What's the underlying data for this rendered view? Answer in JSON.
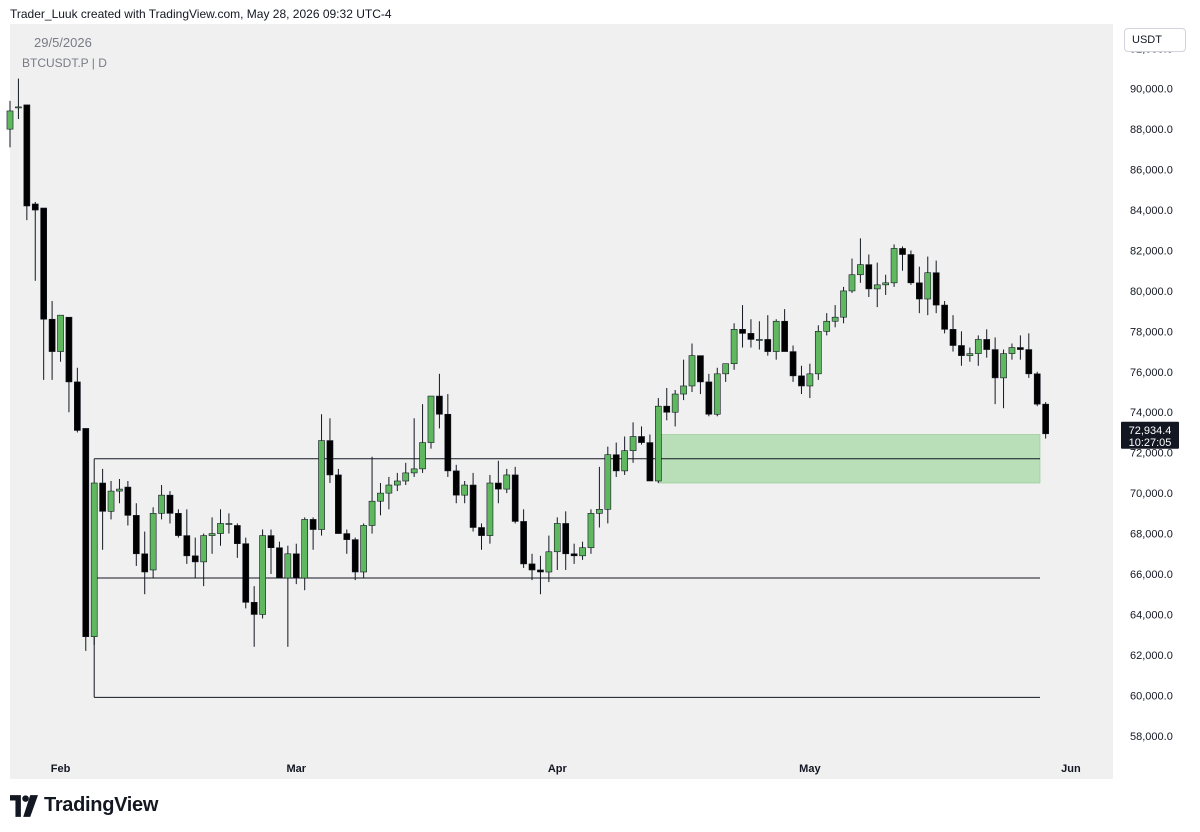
{
  "header": {
    "attribution": "Trader_Luuk created with TradingView.com, May 28, 2026 09:32 UTC-4"
  },
  "legend": {
    "date": "29/5/2026",
    "symbol": "BTCUSDT.P | D"
  },
  "currency_button": "USDT",
  "price_label": {
    "price": "72,934.4",
    "countdown": "10:27:05"
  },
  "footer": {
    "brand": "TradingView",
    "icon": "tradingview-logo-icon"
  },
  "colors": {
    "up": "#5fb85f",
    "down": "#000000",
    "zone": "#b8dfb7",
    "plot_bg": "#f0f0f0"
  },
  "chart_data": {
    "type": "candlestick",
    "timeframe": "D",
    "y_axis": {
      "ticks": [
        "58,000.0",
        "60,000.0",
        "62,000.0",
        "64,000.0",
        "66,000.0",
        "68,000.0",
        "70,000.0",
        "72,000.0",
        "74,000.0",
        "76,000.0",
        "78,000.0",
        "80,000.0",
        "82,000.0",
        "84,000.0",
        "86,000.0",
        "88,000.0",
        "90,000.0",
        "92,000.0"
      ],
      "range": [
        57000,
        93200
      ]
    },
    "x_axis": {
      "ticks": [
        {
          "label": "Feb",
          "date": "2026-02-01"
        },
        {
          "label": "Mar",
          "date": "2026-03-01"
        },
        {
          "label": "Apr",
          "date": "2026-04-01"
        },
        {
          "label": "May",
          "date": "2026-05-01"
        },
        {
          "label": "Jun",
          "date": "2026-06-01"
        }
      ],
      "range": [
        "2026-01-26",
        "2026-06-06"
      ]
    },
    "candles": [
      {
        "d": "2026-01-26",
        "o": 88000,
        "h": 89400,
        "l": 87100,
        "c": 88900
      },
      {
        "d": "2026-01-27",
        "o": 89100,
        "h": 90500,
        "l": 88500,
        "c": 89100
      },
      {
        "d": "2026-01-28",
        "o": 89200,
        "h": 89200,
        "l": 83500,
        "c": 84200
      },
      {
        "d": "2026-01-29",
        "o": 84300,
        "h": 84400,
        "l": 80500,
        "c": 84000
      },
      {
        "d": "2026-01-30",
        "o": 84100,
        "h": 84100,
        "l": 75600,
        "c": 78600
      },
      {
        "d": "2026-01-31",
        "o": 78600,
        "h": 79500,
        "l": 75600,
        "c": 77000
      },
      {
        "d": "2026-02-01",
        "o": 77000,
        "h": 78800,
        "l": 76500,
        "c": 78800
      },
      {
        "d": "2026-02-02",
        "o": 78700,
        "h": 78700,
        "l": 74000,
        "c": 75500
      },
      {
        "d": "2026-02-03",
        "o": 75500,
        "h": 76200,
        "l": 73000,
        "c": 73100
      },
      {
        "d": "2026-02-04",
        "o": 73200,
        "h": 73200,
        "l": 62200,
        "c": 62900
      },
      {
        "d": "2026-02-05",
        "o": 62900,
        "h": 70500,
        "l": 62500,
        "c": 70500
      },
      {
        "d": "2026-02-06",
        "o": 70500,
        "h": 71200,
        "l": 67200,
        "c": 69100
      },
      {
        "d": "2026-02-07",
        "o": 69100,
        "h": 70600,
        "l": 68700,
        "c": 70100
      },
      {
        "d": "2026-02-08",
        "o": 70100,
        "h": 70700,
        "l": 69500,
        "c": 70200
      },
      {
        "d": "2026-02-09",
        "o": 70300,
        "h": 70600,
        "l": 68400,
        "c": 68900
      },
      {
        "d": "2026-02-10",
        "o": 68900,
        "h": 69500,
        "l": 66400,
        "c": 67000
      },
      {
        "d": "2026-02-11",
        "o": 67000,
        "h": 68100,
        "l": 65000,
        "c": 66100
      },
      {
        "d": "2026-02-12",
        "o": 66200,
        "h": 69300,
        "l": 65800,
        "c": 69000
      },
      {
        "d": "2026-02-13",
        "o": 69000,
        "h": 70400,
        "l": 68700,
        "c": 69900
      },
      {
        "d": "2026-02-14",
        "o": 69900,
        "h": 70100,
        "l": 68500,
        "c": 69000
      },
      {
        "d": "2026-02-15",
        "o": 69000,
        "h": 69200,
        "l": 67800,
        "c": 67900
      },
      {
        "d": "2026-02-16",
        "o": 67900,
        "h": 69200,
        "l": 66500,
        "c": 66900
      },
      {
        "d": "2026-02-17",
        "o": 66900,
        "h": 67800,
        "l": 65800,
        "c": 66600
      },
      {
        "d": "2026-02-18",
        "o": 66600,
        "h": 68000,
        "l": 65400,
        "c": 67900
      },
      {
        "d": "2026-02-19",
        "o": 67900,
        "h": 68800,
        "l": 67000,
        "c": 68000
      },
      {
        "d": "2026-02-20",
        "o": 68000,
        "h": 69200,
        "l": 67400,
        "c": 68500
      },
      {
        "d": "2026-02-21",
        "o": 68500,
        "h": 69000,
        "l": 68000,
        "c": 68500
      },
      {
        "d": "2026-02-22",
        "o": 68400,
        "h": 68500,
        "l": 66800,
        "c": 67500
      },
      {
        "d": "2026-02-23",
        "o": 67500,
        "h": 67800,
        "l": 64300,
        "c": 64600
      },
      {
        "d": "2026-02-24",
        "o": 64600,
        "h": 65400,
        "l": 62400,
        "c": 64000
      },
      {
        "d": "2026-02-25",
        "o": 64000,
        "h": 68200,
        "l": 63800,
        "c": 67900
      },
      {
        "d": "2026-02-26",
        "o": 67900,
        "h": 68200,
        "l": 66000,
        "c": 67300
      },
      {
        "d": "2026-02-27",
        "o": 67300,
        "h": 67600,
        "l": 65800,
        "c": 65800
      },
      {
        "d": "2026-02-28",
        "o": 65800,
        "h": 67400,
        "l": 62400,
        "c": 67000
      },
      {
        "d": "2026-03-01",
        "o": 67000,
        "h": 67500,
        "l": 65500,
        "c": 65800
      },
      {
        "d": "2026-03-02",
        "o": 65800,
        "h": 68800,
        "l": 65200,
        "c": 68700
      },
      {
        "d": "2026-03-03",
        "o": 68700,
        "h": 68800,
        "l": 67200,
        "c": 68200
      },
      {
        "d": "2026-03-04",
        "o": 68200,
        "h": 73900,
        "l": 67900,
        "c": 72600
      },
      {
        "d": "2026-03-05",
        "o": 72600,
        "h": 73700,
        "l": 70500,
        "c": 70900
      },
      {
        "d": "2026-03-06",
        "o": 70900,
        "h": 71200,
        "l": 68000,
        "c": 68000
      },
      {
        "d": "2026-03-07",
        "o": 68000,
        "h": 68200,
        "l": 67000,
        "c": 67700
      },
      {
        "d": "2026-03-08",
        "o": 67700,
        "h": 67800,
        "l": 65700,
        "c": 66100
      },
      {
        "d": "2026-03-09",
        "o": 66100,
        "h": 68500,
        "l": 65800,
        "c": 68400
      },
      {
        "d": "2026-03-10",
        "o": 68400,
        "h": 71800,
        "l": 68000,
        "c": 69600
      },
      {
        "d": "2026-03-11",
        "o": 69600,
        "h": 70500,
        "l": 68900,
        "c": 70000
      },
      {
        "d": "2026-03-12",
        "o": 70000,
        "h": 70800,
        "l": 69200,
        "c": 70400
      },
      {
        "d": "2026-03-13",
        "o": 70400,
        "h": 71000,
        "l": 70100,
        "c": 70600
      },
      {
        "d": "2026-03-14",
        "o": 70600,
        "h": 71500,
        "l": 70400,
        "c": 71000
      },
      {
        "d": "2026-03-15",
        "o": 71000,
        "h": 73700,
        "l": 70800,
        "c": 71200
      },
      {
        "d": "2026-03-16",
        "o": 71200,
        "h": 74400,
        "l": 71000,
        "c": 72500
      },
      {
        "d": "2026-03-17",
        "o": 72500,
        "h": 74800,
        "l": 72200,
        "c": 74800
      },
      {
        "d": "2026-03-18",
        "o": 74800,
        "h": 75900,
        "l": 73200,
        "c": 73900
      },
      {
        "d": "2026-03-19",
        "o": 73900,
        "h": 74900,
        "l": 70800,
        "c": 71100
      },
      {
        "d": "2026-03-20",
        "o": 71100,
        "h": 71400,
        "l": 69500,
        "c": 69900
      },
      {
        "d": "2026-03-21",
        "o": 69900,
        "h": 70600,
        "l": 69500,
        "c": 70400
      },
      {
        "d": "2026-03-22",
        "o": 70400,
        "h": 71000,
        "l": 68100,
        "c": 68300
      },
      {
        "d": "2026-03-23",
        "o": 68300,
        "h": 68500,
        "l": 67200,
        "c": 67900
      },
      {
        "d": "2026-03-24",
        "o": 67900,
        "h": 70900,
        "l": 67500,
        "c": 70500
      },
      {
        "d": "2026-03-25",
        "o": 70500,
        "h": 71600,
        "l": 69500,
        "c": 70200
      },
      {
        "d": "2026-03-26",
        "o": 70200,
        "h": 71200,
        "l": 70000,
        "c": 70900
      },
      {
        "d": "2026-03-27",
        "o": 70900,
        "h": 71300,
        "l": 68500,
        "c": 68600
      },
      {
        "d": "2026-03-28",
        "o": 68600,
        "h": 69200,
        "l": 66300,
        "c": 66500
      },
      {
        "d": "2026-03-29",
        "o": 66500,
        "h": 67000,
        "l": 65700,
        "c": 66200
      },
      {
        "d": "2026-03-30",
        "o": 66200,
        "h": 66900,
        "l": 65000,
        "c": 66100
      },
      {
        "d": "2026-03-31",
        "o": 66100,
        "h": 67900,
        "l": 65600,
        "c": 67100
      },
      {
        "d": "2026-04-01",
        "o": 67100,
        "h": 68800,
        "l": 66200,
        "c": 68500
      },
      {
        "d": "2026-04-02",
        "o": 68500,
        "h": 69100,
        "l": 66200,
        "c": 67000
      },
      {
        "d": "2026-04-03",
        "o": 67000,
        "h": 67500,
        "l": 66500,
        "c": 66900
      },
      {
        "d": "2026-04-04",
        "o": 66900,
        "h": 67600,
        "l": 66700,
        "c": 67300
      },
      {
        "d": "2026-04-05",
        "o": 67300,
        "h": 69200,
        "l": 67000,
        "c": 69000
      },
      {
        "d": "2026-04-06",
        "o": 69000,
        "h": 71300,
        "l": 68300,
        "c": 69200
      },
      {
        "d": "2026-04-07",
        "o": 69200,
        "h": 72300,
        "l": 68500,
        "c": 71900
      },
      {
        "d": "2026-04-08",
        "o": 71900,
        "h": 72500,
        "l": 70800,
        "c": 71100
      },
      {
        "d": "2026-04-09",
        "o": 71100,
        "h": 72800,
        "l": 70900,
        "c": 72100
      },
      {
        "d": "2026-04-10",
        "o": 72100,
        "h": 73500,
        "l": 71500,
        "c": 72800
      },
      {
        "d": "2026-04-11",
        "o": 72800,
        "h": 73300,
        "l": 72400,
        "c": 72500
      },
      {
        "d": "2026-04-12",
        "o": 72500,
        "h": 72900,
        "l": 70600,
        "c": 70600
      },
      {
        "d": "2026-04-13",
        "o": 70600,
        "h": 74700,
        "l": 70500,
        "c": 74300
      },
      {
        "d": "2026-04-14",
        "o": 74300,
        "h": 75200,
        "l": 73600,
        "c": 74000
      },
      {
        "d": "2026-04-15",
        "o": 74000,
        "h": 75100,
        "l": 73300,
        "c": 74900
      },
      {
        "d": "2026-04-16",
        "o": 74900,
        "h": 76600,
        "l": 74600,
        "c": 75300
      },
      {
        "d": "2026-04-17",
        "o": 75300,
        "h": 77400,
        "l": 75000,
        "c": 76800
      },
      {
        "d": "2026-04-18",
        "o": 76800,
        "h": 76800,
        "l": 74900,
        "c": 75500
      },
      {
        "d": "2026-04-19",
        "o": 75500,
        "h": 75900,
        "l": 73800,
        "c": 73900
      },
      {
        "d": "2026-04-20",
        "o": 73900,
        "h": 76200,
        "l": 73800,
        "c": 75900
      },
      {
        "d": "2026-04-21",
        "o": 75900,
        "h": 76300,
        "l": 75500,
        "c": 76400
      },
      {
        "d": "2026-04-22",
        "o": 76400,
        "h": 78400,
        "l": 76100,
        "c": 78100
      },
      {
        "d": "2026-04-23",
        "o": 78100,
        "h": 79300,
        "l": 77200,
        "c": 77900
      },
      {
        "d": "2026-04-24",
        "o": 77900,
        "h": 78600,
        "l": 77200,
        "c": 77600
      },
      {
        "d": "2026-04-25",
        "o": 77600,
        "h": 78500,
        "l": 77100,
        "c": 77600
      },
      {
        "d": "2026-04-26",
        "o": 77600,
        "h": 78800,
        "l": 76800,
        "c": 77000
      },
      {
        "d": "2026-04-27",
        "o": 77000,
        "h": 78600,
        "l": 76600,
        "c": 78500
      },
      {
        "d": "2026-04-28",
        "o": 78500,
        "h": 79100,
        "l": 77300,
        "c": 77000
      },
      {
        "d": "2026-04-29",
        "o": 77000,
        "h": 77300,
        "l": 75500,
        "c": 75800
      },
      {
        "d": "2026-04-30",
        "o": 75800,
        "h": 76300,
        "l": 74900,
        "c": 75300
      },
      {
        "d": "2026-05-01",
        "o": 75300,
        "h": 76400,
        "l": 74700,
        "c": 75900
      },
      {
        "d": "2026-05-02",
        "o": 75900,
        "h": 78300,
        "l": 75600,
        "c": 78000
      },
      {
        "d": "2026-05-03",
        "o": 78000,
        "h": 78900,
        "l": 77800,
        "c": 78500
      },
      {
        "d": "2026-05-04",
        "o": 78500,
        "h": 79300,
        "l": 78200,
        "c": 78700
      },
      {
        "d": "2026-05-05",
        "o": 78700,
        "h": 80200,
        "l": 78400,
        "c": 80000
      },
      {
        "d": "2026-05-06",
        "o": 80000,
        "h": 81600,
        "l": 79900,
        "c": 80800
      },
      {
        "d": "2026-05-07",
        "o": 80800,
        "h": 82600,
        "l": 80400,
        "c": 81300
      },
      {
        "d": "2026-05-08",
        "o": 81300,
        "h": 81800,
        "l": 79700,
        "c": 80100
      },
      {
        "d": "2026-05-09",
        "o": 80100,
        "h": 81400,
        "l": 79200,
        "c": 80300
      },
      {
        "d": "2026-05-10",
        "o": 80300,
        "h": 80800,
        "l": 79800,
        "c": 80400
      },
      {
        "d": "2026-05-11",
        "o": 80400,
        "h": 82300,
        "l": 80200,
        "c": 82100
      },
      {
        "d": "2026-05-12",
        "o": 82100,
        "h": 82200,
        "l": 81000,
        "c": 81800
      },
      {
        "d": "2026-05-13",
        "o": 81800,
        "h": 82000,
        "l": 80300,
        "c": 80400
      },
      {
        "d": "2026-05-14",
        "o": 80400,
        "h": 81200,
        "l": 78900,
        "c": 79600
      },
      {
        "d": "2026-05-15",
        "o": 79600,
        "h": 81700,
        "l": 78800,
        "c": 80900
      },
      {
        "d": "2026-05-16",
        "o": 80900,
        "h": 81500,
        "l": 78900,
        "c": 79300
      },
      {
        "d": "2026-05-17",
        "o": 79300,
        "h": 79500,
        "l": 77900,
        "c": 78100
      },
      {
        "d": "2026-05-18",
        "o": 78100,
        "h": 78800,
        "l": 77000,
        "c": 77300
      },
      {
        "d": "2026-05-19",
        "o": 77300,
        "h": 78000,
        "l": 76300,
        "c": 76800
      },
      {
        "d": "2026-05-20",
        "o": 76800,
        "h": 77200,
        "l": 76500,
        "c": 76900
      },
      {
        "d": "2026-05-21",
        "o": 76900,
        "h": 77800,
        "l": 76300,
        "c": 77600
      },
      {
        "d": "2026-05-22",
        "o": 77600,
        "h": 78100,
        "l": 76700,
        "c": 77100
      },
      {
        "d": "2026-05-23",
        "o": 77100,
        "h": 77700,
        "l": 74400,
        "c": 75700
      },
      {
        "d": "2026-05-24",
        "o": 75700,
        "h": 77100,
        "l": 74200,
        "c": 76900
      },
      {
        "d": "2026-05-25",
        "o": 76900,
        "h": 77400,
        "l": 76600,
        "c": 77200
      },
      {
        "d": "2026-05-26",
        "o": 77200,
        "h": 77800,
        "l": 76600,
        "c": 77100
      },
      {
        "d": "2026-05-27",
        "o": 77100,
        "h": 77900,
        "l": 75700,
        "c": 75900
      },
      {
        "d": "2026-05-28",
        "o": 75900,
        "h": 76000,
        "l": 74300,
        "c": 74400
      },
      {
        "d": "2026-05-29",
        "o": 74400,
        "h": 74500,
        "l": 72700,
        "c": 72934.4
      }
    ],
    "horizontal_lines": [
      {
        "price": 71700,
        "from": "2026-02-05",
        "to": "2026-06-06"
      },
      {
        "price": 65800,
        "from": "2026-02-05",
        "to": "2026-06-06"
      },
      {
        "price": 59900,
        "from": "2026-02-05",
        "to": "2026-06-06"
      }
    ],
    "vertical_lines": [
      {
        "date": "2026-02-05",
        "from_price": 59900,
        "to_price": 71700
      }
    ],
    "zones": [
      {
        "from": "2026-04-13",
        "to": "2026-06-06",
        "top": 72900,
        "bottom": 70500
      }
    ],
    "last_price": 72934.4
  }
}
